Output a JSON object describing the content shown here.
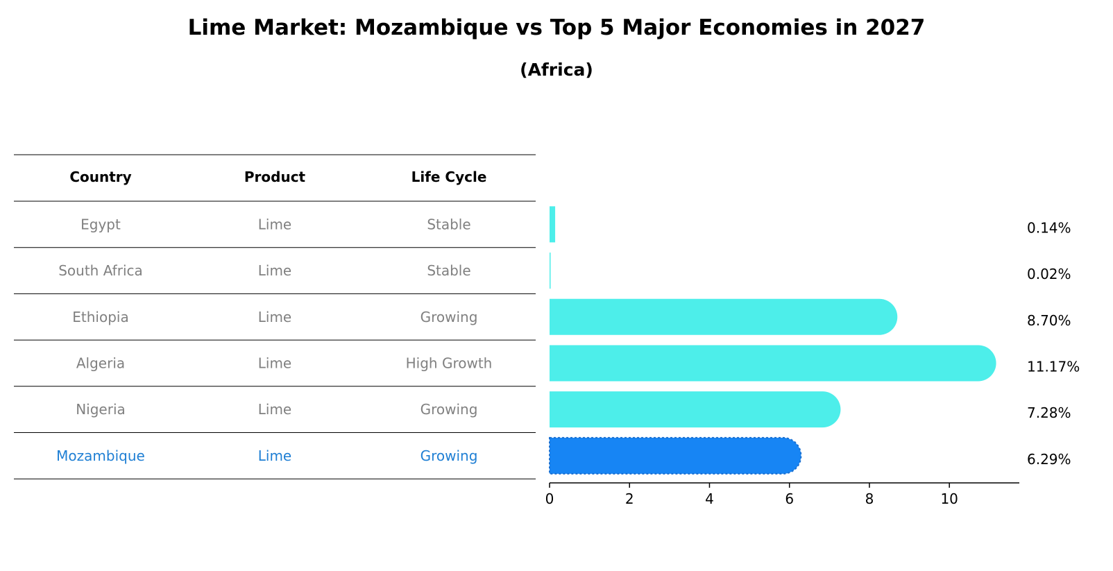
{
  "chart_data": {
    "type": "bar",
    "orientation": "horizontal",
    "title": "Lime Market: Mozambique vs Top 5 Major Economies in 2027",
    "subtitle": "(Africa)",
    "columns": [
      "Country",
      "Product",
      "Life Cycle"
    ],
    "rows": [
      {
        "country": "Egypt",
        "product": "Lime",
        "life_cycle": "Stable",
        "value": 0.14,
        "label": "0.14%",
        "highlight": false
      },
      {
        "country": "South Africa",
        "product": "Lime",
        "life_cycle": "Stable",
        "value": 0.02,
        "label": "0.02%",
        "highlight": false
      },
      {
        "country": "Ethiopia",
        "product": "Lime",
        "life_cycle": "Growing",
        "value": 8.7,
        "label": "8.70%",
        "highlight": false
      },
      {
        "country": "Algeria",
        "product": "Lime",
        "life_cycle": "High Growth",
        "value": 11.17,
        "label": "11.17%",
        "highlight": false
      },
      {
        "country": "Nigeria",
        "product": "Lime",
        "life_cycle": "Growing",
        "value": 7.28,
        "label": "7.28%",
        "highlight": false
      },
      {
        "country": "Mozambique",
        "product": "Lime",
        "life_cycle": "Growing",
        "value": 6.29,
        "label": "6.29%",
        "highlight": true
      }
    ],
    "xlim": [
      0,
      11.75
    ],
    "xticks": [
      0,
      2,
      4,
      6,
      8,
      10
    ],
    "grid": false,
    "colors": {
      "bar": "#4deeea",
      "highlight_bar": "#1785f4",
      "text_default": "#808080",
      "text_highlight": "#1f7fd4"
    }
  }
}
